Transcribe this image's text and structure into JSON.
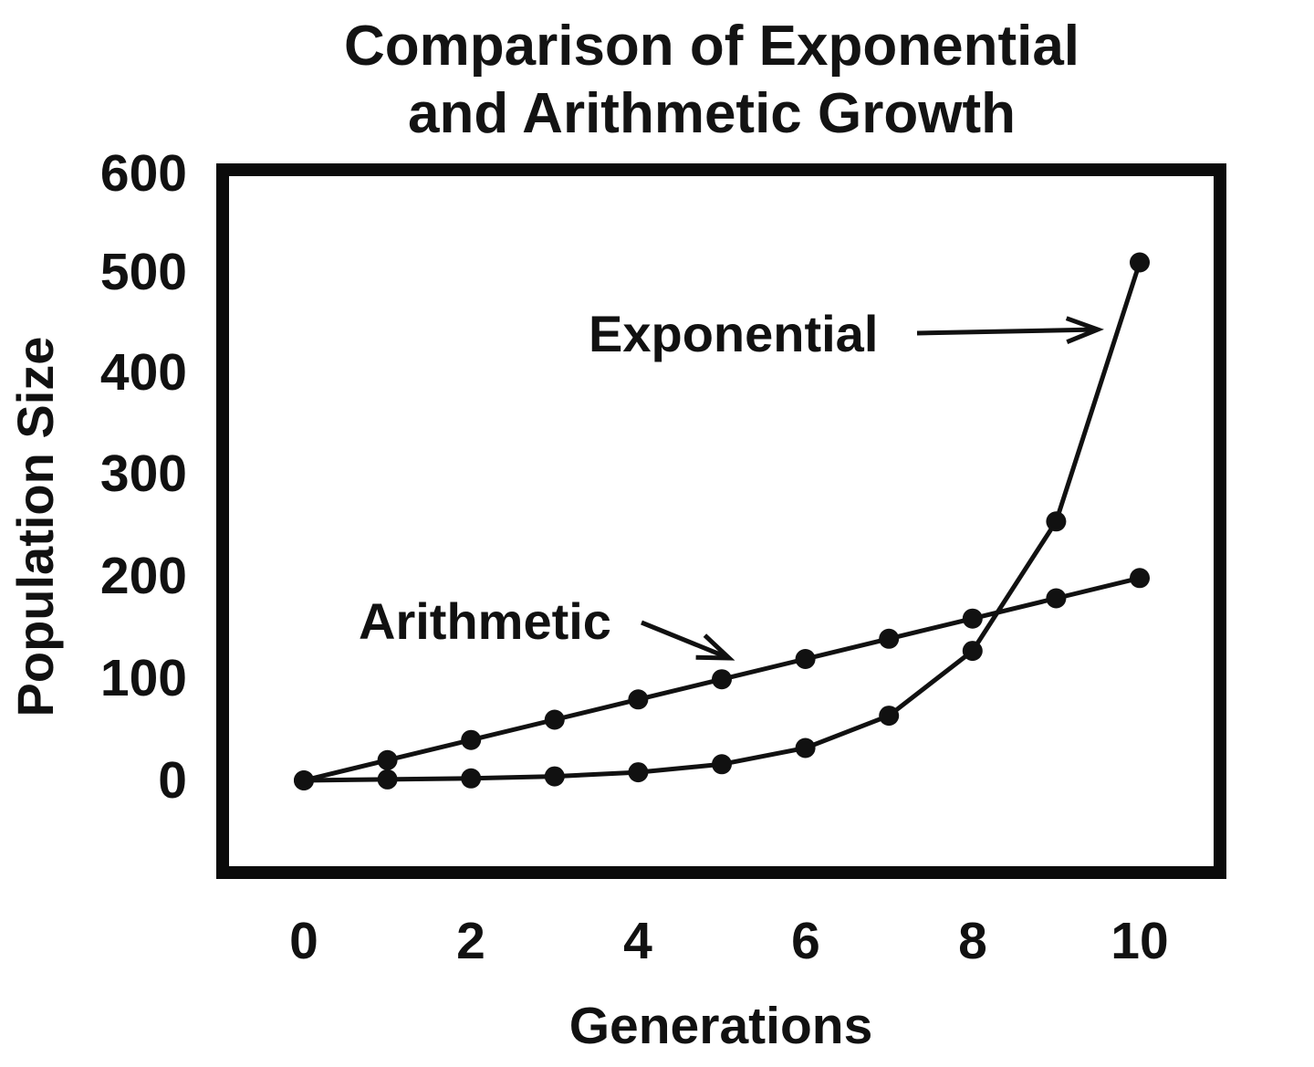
{
  "title": {
    "line1": "Comparison of Exponential",
    "line2": "and Arithmetic Growth"
  },
  "axes": {
    "y_label": "Population Size",
    "x_label": "Generations",
    "y_ticks": [
      "600",
      "500",
      "400",
      "300",
      "200",
      "100",
      "0"
    ],
    "x_ticks": [
      "0",
      "2",
      "4",
      "6",
      "8",
      "10"
    ]
  },
  "colors": {
    "line": "#111111",
    "text": "#111111",
    "background": "#ffffff",
    "plot_border": "#0b0b0b"
  },
  "chart_data": {
    "type": "line",
    "title": "Comparison of Exponential and Arithmetic Growth",
    "xlabel": "Generations",
    "ylabel": "Population Size",
    "xlim": [
      0,
      10
    ],
    "ylim": [
      0,
      600
    ],
    "x": [
      0,
      1,
      2,
      3,
      4,
      5,
      6,
      7,
      8,
      9,
      10
    ],
    "series": [
      {
        "name": "Arithmetic",
        "values": [
          0,
          20,
          40,
          60,
          80,
          100,
          120,
          140,
          160,
          180,
          200
        ],
        "marker": "circle"
      },
      {
        "name": "Exponential",
        "values": [
          0,
          1,
          2,
          4,
          8,
          16,
          32,
          64,
          128,
          256,
          512
        ],
        "marker": "circle"
      }
    ],
    "grid": false,
    "legend_position": "inline-annotations",
    "annotations": [
      {
        "text": "Exponential",
        "points_to": "exponential-curve"
      },
      {
        "text": "Arithmetic",
        "points_to": "arithmetic-line"
      }
    ]
  }
}
